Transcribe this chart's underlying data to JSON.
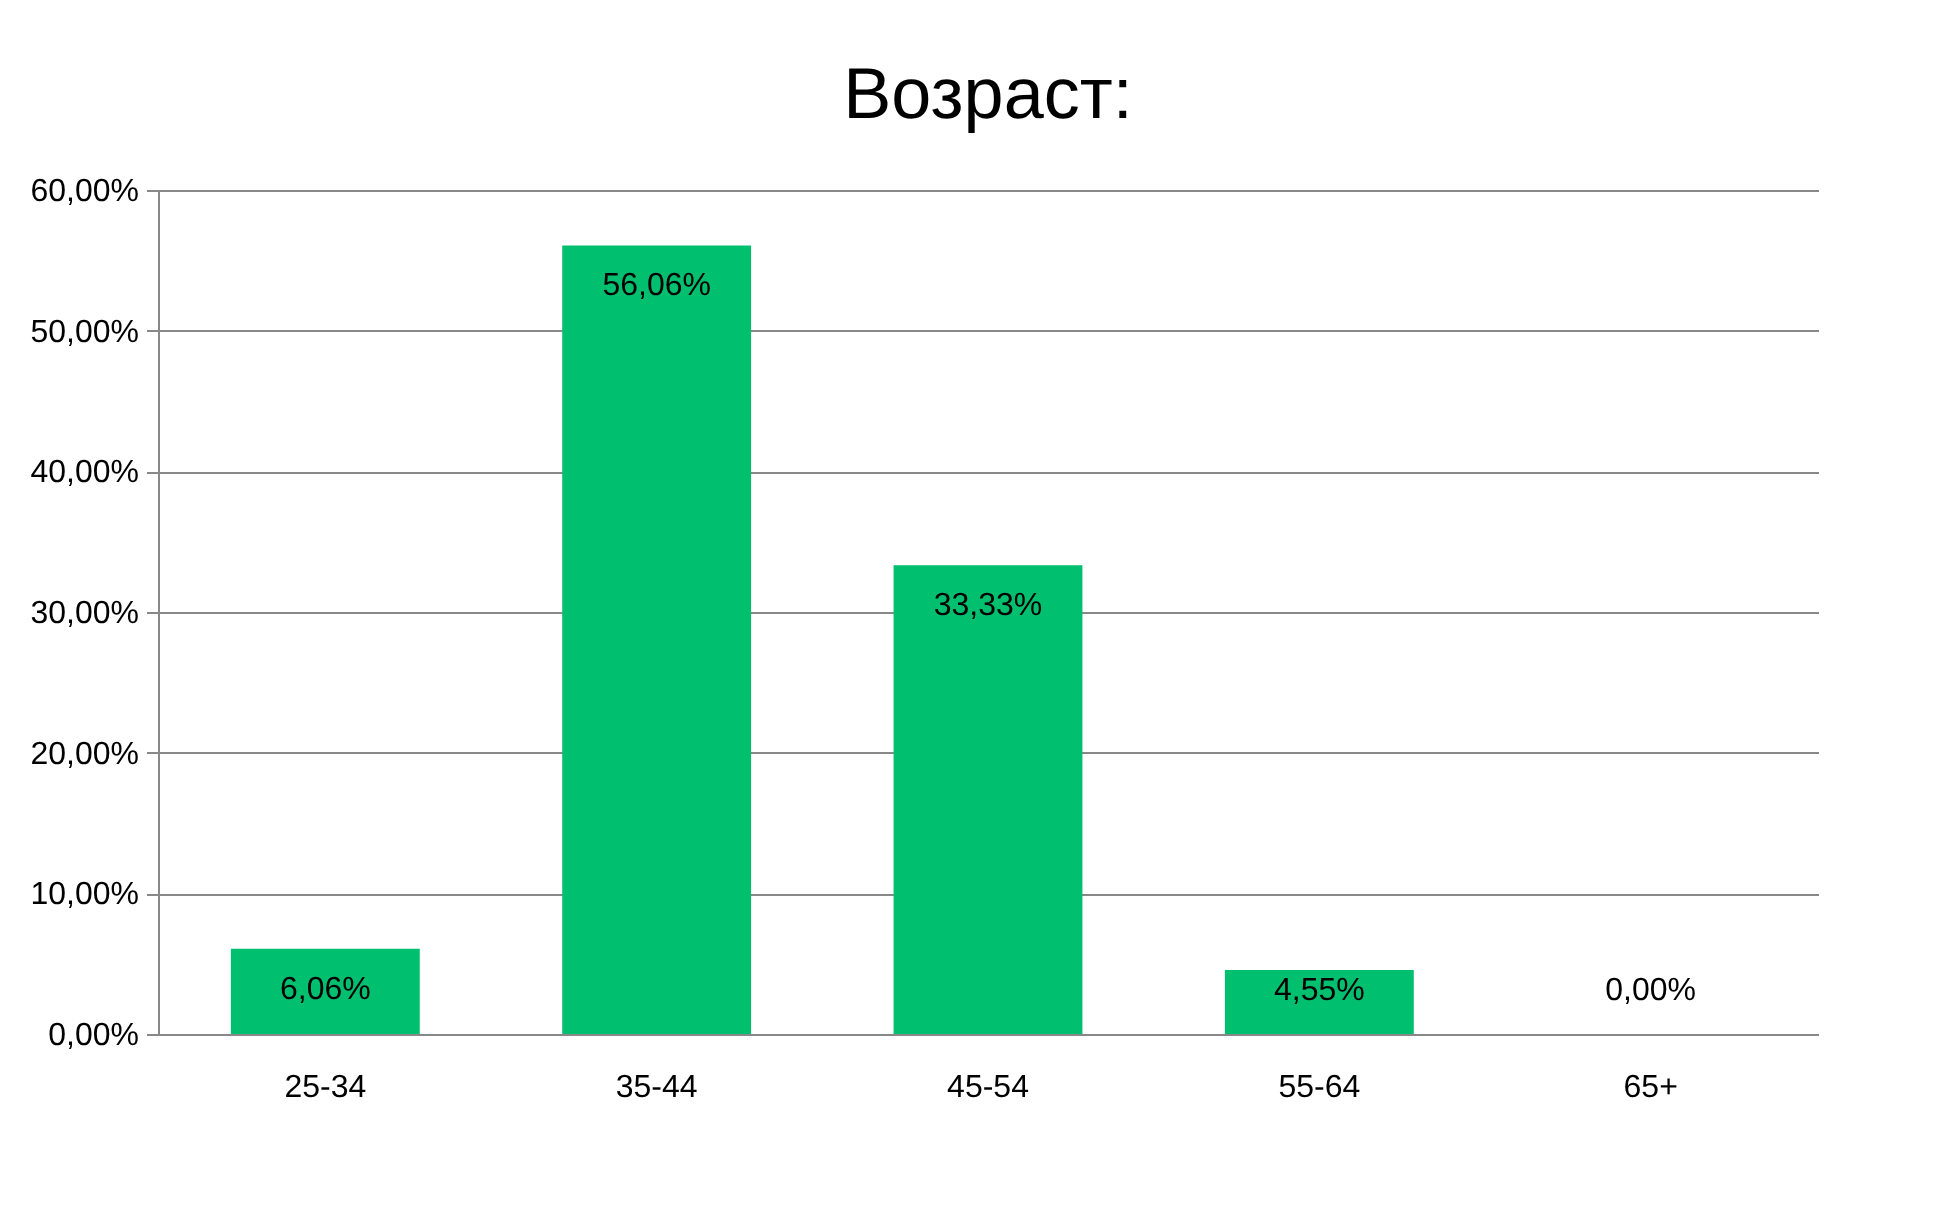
{
  "chart_data": {
    "type": "bar",
    "title": "Возраст:",
    "categories": [
      "25-34",
      "35-44",
      "45-54",
      "55-64",
      "65+"
    ],
    "values": [
      6.06,
      56.06,
      33.33,
      4.55,
      0
    ],
    "value_labels": [
      "6,06%",
      "56,06%",
      "33,33%",
      "4,55%",
      "0,00%"
    ],
    "color": "#00bf6f",
    "ylim": [
      0,
      60
    ],
    "yticks": [
      {
        "value": 0,
        "label": "0,00%"
      },
      {
        "value": 10,
        "label": "10,00%"
      },
      {
        "value": 20,
        "label": "20,00%"
      },
      {
        "value": 30,
        "label": "30,00%"
      },
      {
        "value": 40,
        "label": "40,00%"
      },
      {
        "value": 50,
        "label": "50,00%"
      },
      {
        "value": 60,
        "label": "60,00%"
      }
    ],
    "grid": "y"
  }
}
